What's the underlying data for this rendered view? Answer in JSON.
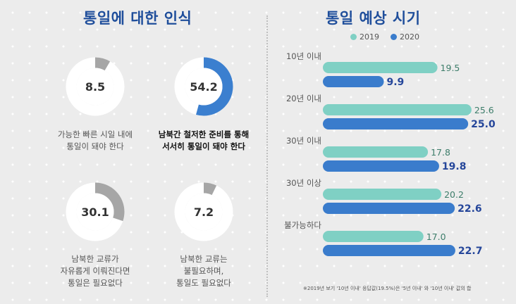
{
  "left": {
    "title": "통일에 대한 인식",
    "items": [
      {
        "value": "8.5",
        "percent": 8.5,
        "highlight": false,
        "caption": [
          "가능한 빠른 시일 내에",
          "통일이 돼야 한다"
        ]
      },
      {
        "value": "54.2",
        "percent": 54.2,
        "highlight": true,
        "caption": [
          "남북간 철저한 준비를 통해",
          "서서히 통일이 돼야 한다"
        ]
      },
      {
        "value": "30.1",
        "percent": 30.1,
        "highlight": false,
        "caption": [
          "남북한 교류가",
          "자유롭게 이뤄진다면",
          "통일은 필요없다"
        ]
      },
      {
        "value": "7.2",
        "percent": 7.2,
        "highlight": false,
        "caption": [
          "남북한 교류는",
          "불필요하며,",
          "통일도 필요없다"
        ]
      }
    ]
  },
  "right": {
    "title": "통일 예상 시기",
    "footnote": "※2019년 보기 '10년 이내' 응답값(19.5%)은 '5년 이내' 와 '10년 이내' 값의 합"
  },
  "colors": {
    "s2019": "#7fd0c4",
    "s2020": "#3a7ccc",
    "donut_track": "#ffffff",
    "donut_gray": "#a6a6a6",
    "donut_blue": "#3b7fcf",
    "label_2019": "#3d7d6a",
    "label_2020": "#25469a"
  },
  "chart_data": {
    "type": "bar",
    "orientation": "horizontal",
    "title": "통일 예상 시기",
    "categories": [
      "10년 이내",
      "20년 이내",
      "30년 이내",
      "30년 이상",
      "불가능하다"
    ],
    "series": [
      {
        "name": "2019",
        "values": [
          19.5,
          25.6,
          17.8,
          20.2,
          17.0
        ],
        "labels": [
          "19.5",
          "25.6",
          "17.8",
          "20.2",
          "17.0"
        ]
      },
      {
        "name": "2020",
        "values": [
          9.9,
          25.0,
          19.8,
          22.6,
          22.7
        ],
        "labels": [
          "9.9",
          "25.0",
          "19.8",
          "22.6",
          "22.7"
        ]
      }
    ],
    "xlim": [
      0,
      27
    ],
    "legend": "top"
  }
}
